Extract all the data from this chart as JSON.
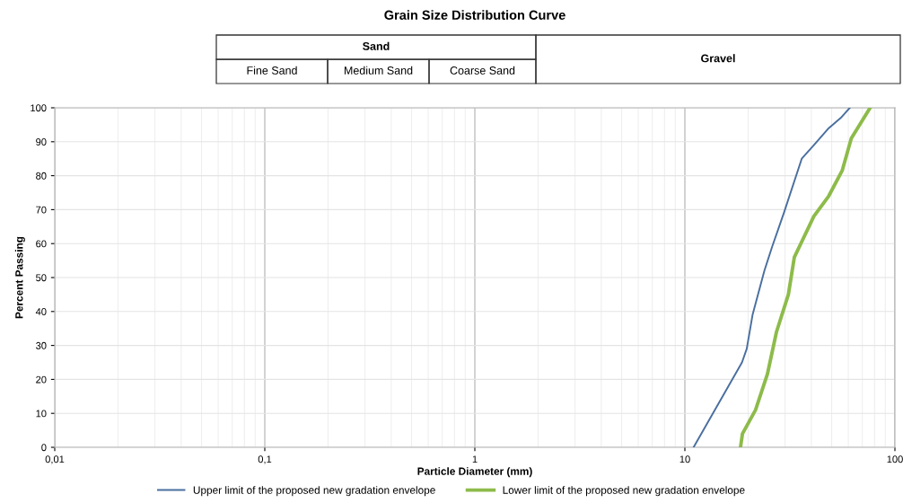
{
  "chart_data": {
    "type": "line",
    "title": "Grain Size Distribution Curve",
    "xlabel": "Particle Diameter (mm)",
    "ylabel": "Percent Passing",
    "log": "x",
    "xlim": [
      0.01,
      100
    ],
    "xticks": [
      {
        "value": 0.01,
        "label": "0,01"
      },
      {
        "value": 0.1,
        "label": "0,1"
      },
      1,
      10,
      100
    ],
    "ylim": [
      0,
      100
    ],
    "yticks": [
      0,
      10,
      20,
      30,
      40,
      50,
      60,
      70,
      80,
      90,
      100
    ],
    "grid": true,
    "legend": "bottom",
    "marker": "none",
    "line_style": "solid",
    "annotations": [
      "Sand",
      "Fine Sand",
      "Medium Sand",
      "Coarse Sand",
      "Gravel"
    ],
    "series": [
      {
        "name": "Upper limit of the proposed new gradation envelope",
        "color": "#4a6f9f",
        "x": [
          11.0,
          18.7,
          19.7,
          21.0,
          23.9,
          26.0,
          29.6,
          36.0,
          41.1,
          48.4,
          55.2,
          61.0
        ],
        "values": [
          0,
          25,
          29,
          39,
          52,
          59,
          69,
          85,
          89,
          94,
          97,
          100
        ]
      },
      {
        "name": "Lower limit of the proposed new gradation envelope",
        "color": "#8dbb4a",
        "x": [
          18.4,
          18.8,
          21.7,
          24.7,
          27.3,
          31.1,
          33.2,
          41.1,
          48.4,
          56.1,
          62.0,
          76.2
        ],
        "values": [
          0,
          4,
          11,
          21.5,
          34,
          45,
          56,
          68,
          74,
          81.5,
          91,
          100
        ]
      }
    ]
  }
}
